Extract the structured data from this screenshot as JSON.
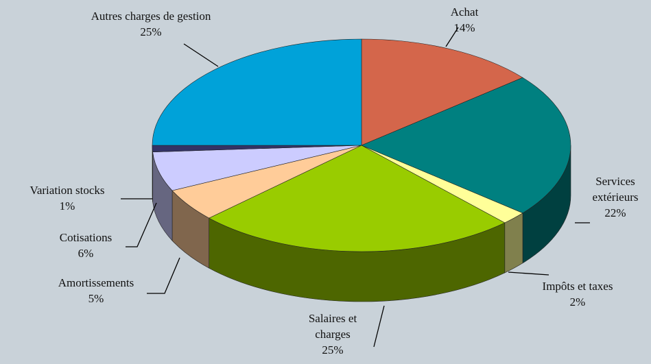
{
  "chart_data": {
    "type": "pie",
    "categories": [
      "Achat",
      "Services extérieurs",
      "Impôts et taxes",
      "Salaires et charges",
      "Amortissements",
      "Cotisations",
      "Variation stocks",
      "Autres charges de gestion"
    ],
    "values": [
      14,
      22,
      2,
      25,
      5,
      6,
      1,
      25
    ],
    "value_labels": [
      "14%",
      "22%",
      "2%",
      "25%",
      "5%",
      "6%",
      "1%",
      "25%"
    ],
    "colors": [
      "#d4664b",
      "#008080",
      "#ffff99",
      "#99cc00",
      "#ffcc99",
      "#ccccff",
      "#333366",
      "#00a2d9"
    ]
  }
}
